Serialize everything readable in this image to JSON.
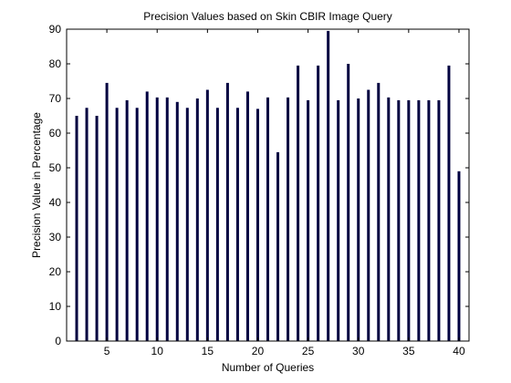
{
  "chart_data": {
    "type": "bar",
    "title": "Precision Values based on Skin CBIR Image Query",
    "xlabel": "Number of  Queries",
    "ylabel": "Precision Value in Percentage",
    "x": [
      1,
      2,
      3,
      4,
      5,
      6,
      7,
      8,
      9,
      10,
      11,
      12,
      13,
      14,
      15,
      16,
      17,
      18,
      19,
      20,
      21,
      22,
      23,
      24,
      25,
      26,
      27,
      28,
      29,
      30,
      31,
      32,
      33,
      34,
      35,
      36,
      37,
      38,
      39,
      40
    ],
    "values": [
      0,
      65,
      67.3,
      65,
      74.5,
      67.3,
      69.5,
      67.3,
      72,
      70.3,
      70.3,
      69,
      67.3,
      70,
      72.5,
      67.3,
      74.5,
      67.3,
      72,
      67,
      70.3,
      54.5,
      70.3,
      79.5,
      69.5,
      79.5,
      89.5,
      69.5,
      80,
      70,
      72.5,
      74.5,
      70.3,
      69.5,
      69.5,
      69.5,
      69.5,
      69.5,
      79.5,
      49
    ],
    "xlim": [
      1,
      41
    ],
    "ylim": [
      0,
      90
    ],
    "xticks": [
      5,
      10,
      15,
      20,
      25,
      30,
      35,
      40
    ],
    "yticks": [
      0,
      10,
      20,
      30,
      40,
      50,
      60,
      70,
      80,
      90
    ],
    "bar_color": "#000040",
    "grid": false
  }
}
